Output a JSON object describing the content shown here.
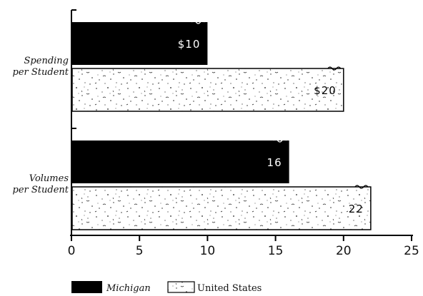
{
  "chart_data": {
    "type": "bar",
    "orientation": "horizontal",
    "categories": [
      "Spending\nper Student",
      "Volumes\nper Student"
    ],
    "series": [
      {
        "name": "Michigan",
        "values": [
          10,
          16
        ],
        "labels": [
          "$10",
          "16"
        ],
        "color": "#000000",
        "pattern": "solid"
      },
      {
        "name": "United States",
        "values": [
          20,
          22
        ],
        "labels": [
          "$20",
          "22"
        ],
        "color": "#ffffff",
        "pattern": "speckled"
      }
    ],
    "xlim": [
      0,
      25
    ],
    "xticks": [
      "0",
      "5",
      "10",
      "15",
      "20",
      "25"
    ],
    "title": "",
    "xlabel": "",
    "ylabel": "",
    "grid": false,
    "legend": "bottom-left"
  }
}
